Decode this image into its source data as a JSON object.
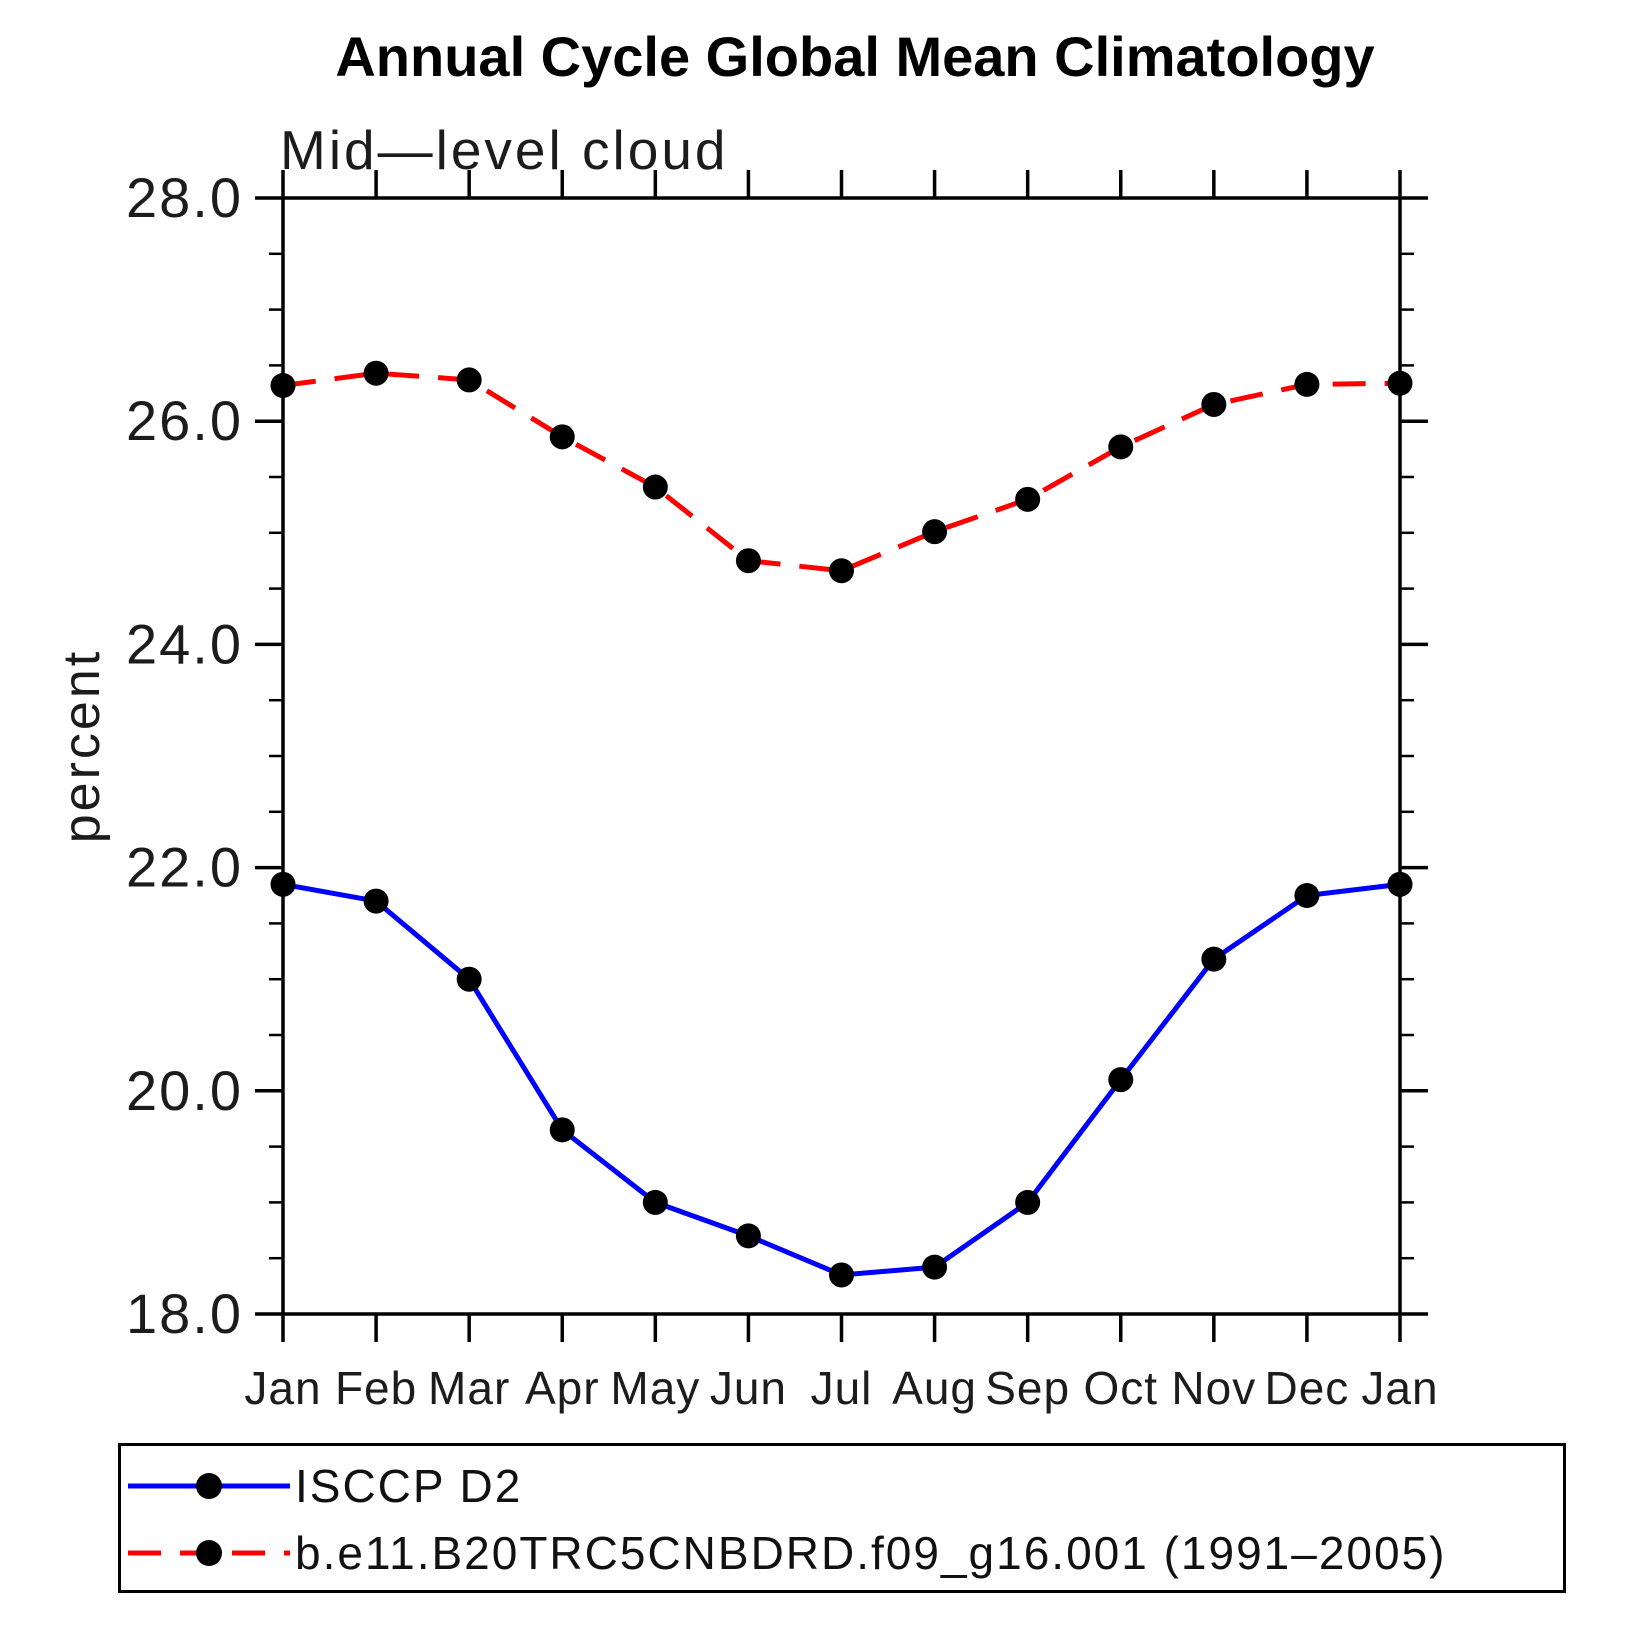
{
  "title": "Annual Cycle Global Mean Climatology",
  "subtitle": "Mid—level cloud",
  "ylabel": "percent",
  "chart_data": {
    "type": "line",
    "categories": [
      "Jan",
      "Feb",
      "Mar",
      "Apr",
      "May",
      "Jun",
      "Jul",
      "Aug",
      "Sep",
      "Oct",
      "Nov",
      "Dec",
      "Jan"
    ],
    "series": [
      {
        "name": "ISCCP D2",
        "color": "#0000ff",
        "line_style": "solid",
        "marker": "circle",
        "marker_color": "#000000",
        "values": [
          21.85,
          21.7,
          21.0,
          19.65,
          19.0,
          18.7,
          18.35,
          18.42,
          19.0,
          20.1,
          21.18,
          21.75,
          21.85
        ]
      },
      {
        "name": "b.e11.B20TRC5CNBDRD.f09_g16.001 (1991–2005)",
        "color": "#ff0000",
        "line_style": "dashed",
        "marker": "circle",
        "marker_color": "#000000",
        "values": [
          26.32,
          26.43,
          26.37,
          25.86,
          25.41,
          24.75,
          24.66,
          25.01,
          25.3,
          25.77,
          26.15,
          26.33,
          26.34
        ]
      }
    ],
    "xlabel": "",
    "ylabel": "percent",
    "ylim": [
      18.0,
      28.0
    ],
    "ytick_major": 2.0,
    "ytick_minor": 0.5,
    "ytick_labels": [
      "28.0",
      "26.0",
      "24.0",
      "22.0",
      "20.0",
      "18.0"
    ],
    "grid": false,
    "legend_position": "bottom"
  }
}
